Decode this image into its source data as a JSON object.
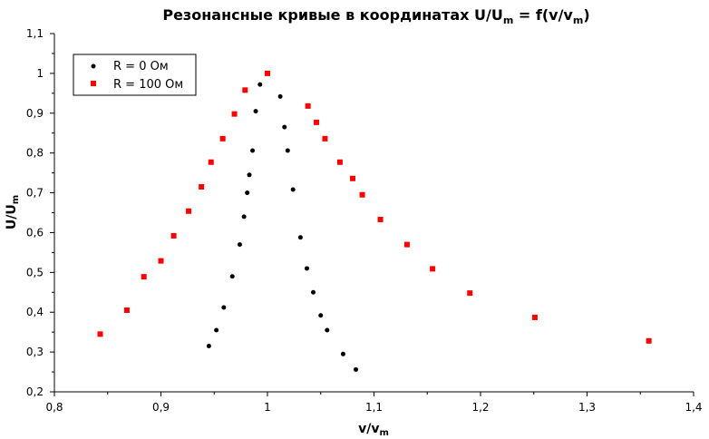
{
  "chart_data": {
    "type": "scatter",
    "title": "Резонансные кривые в координатах U/U",
    "title_sub": "m",
    "title_tail": " = f(v/v",
    "title_tail_sub": "m",
    "title_end": ")",
    "xlabel": "v/v",
    "xlabel_sub": "m",
    "ylabel": "U/U",
    "ylabel_sub": "m",
    "xlim": [
      0.8,
      1.4
    ],
    "ylim": [
      0.2,
      1.1
    ],
    "xticks": [
      "0,8",
      "0,9",
      "1",
      "1,1",
      "1,2",
      "1,3",
      "1,4"
    ],
    "yticks": [
      "0,2",
      "0,3",
      "0,4",
      "0,5",
      "0,6",
      "0,7",
      "0,8",
      "0,9",
      "1",
      "1,1"
    ],
    "legend_position": "top-left",
    "series": [
      {
        "name": "R = 0 Ом",
        "color": "#000000",
        "marker": "circle",
        "points": [
          [
            0.945,
            0.315
          ],
          [
            0.952,
            0.355
          ],
          [
            0.959,
            0.412
          ],
          [
            0.967,
            0.49
          ],
          [
            0.974,
            0.57
          ],
          [
            0.978,
            0.64
          ],
          [
            0.981,
            0.7
          ],
          [
            0.983,
            0.745
          ],
          [
            0.986,
            0.806
          ],
          [
            0.989,
            0.905
          ],
          [
            0.993,
            0.972
          ],
          [
            1.012,
            0.942
          ],
          [
            1.016,
            0.865
          ],
          [
            1.019,
            0.806
          ],
          [
            1.024,
            0.708
          ],
          [
            1.031,
            0.588
          ],
          [
            1.037,
            0.51
          ],
          [
            1.043,
            0.45
          ],
          [
            1.05,
            0.392
          ],
          [
            1.056,
            0.355
          ],
          [
            1.071,
            0.295
          ],
          [
            1.083,
            0.256
          ]
        ]
      },
      {
        "name": "R = 100 Ом",
        "color": "#ff0000",
        "marker": "square",
        "points": [
          [
            0.843,
            0.345
          ],
          [
            0.868,
            0.405
          ],
          [
            0.884,
            0.489
          ],
          [
            0.9,
            0.529
          ],
          [
            0.912,
            0.592
          ],
          [
            0.926,
            0.654
          ],
          [
            0.938,
            0.715
          ],
          [
            0.947,
            0.777
          ],
          [
            0.958,
            0.836
          ],
          [
            0.969,
            0.898
          ],
          [
            0.979,
            0.958
          ],
          [
            1.0,
            1.0
          ],
          [
            1.038,
            0.918
          ],
          [
            1.046,
            0.877
          ],
          [
            1.054,
            0.836
          ],
          [
            1.068,
            0.777
          ],
          [
            1.08,
            0.736
          ],
          [
            1.089,
            0.695
          ],
          [
            1.106,
            0.633
          ],
          [
            1.131,
            0.57
          ],
          [
            1.155,
            0.509
          ],
          [
            1.19,
            0.448
          ],
          [
            1.251,
            0.387
          ],
          [
            1.358,
            0.328
          ]
        ]
      }
    ]
  }
}
